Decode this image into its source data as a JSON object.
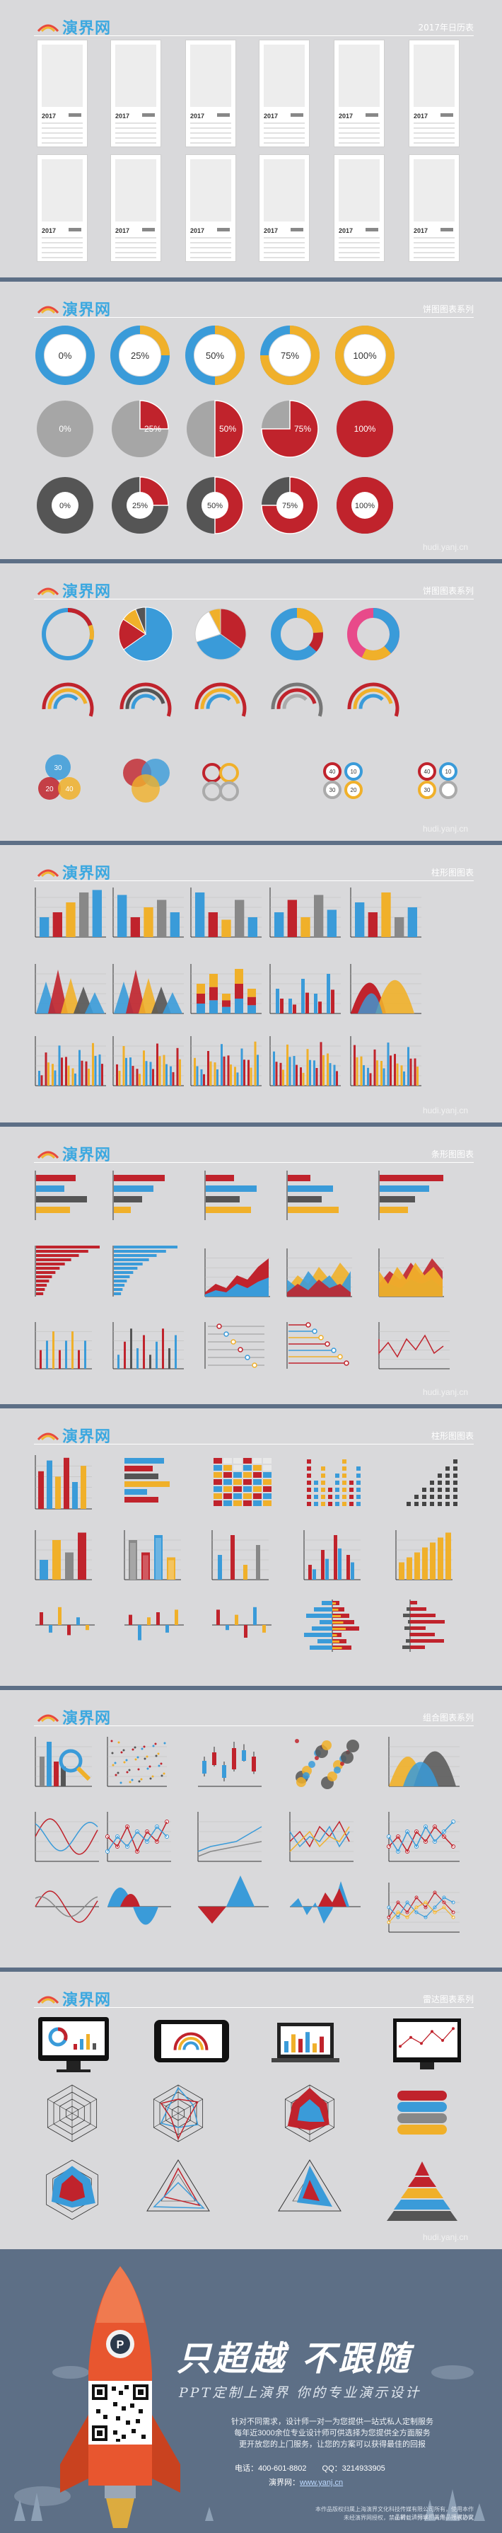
{
  "brand": {
    "logo_text": "演界网",
    "watermark": "hudi.yanj.cn"
  },
  "slides": {
    "s1": {
      "title": "2017年日历表",
      "year_label": "2017"
    },
    "s2": {
      "title": "饼图图表系列",
      "row1": [
        "0%",
        "25%",
        "50%",
        "75%",
        "100%"
      ],
      "row2": [
        "0%",
        "25%",
        "50%",
        "75%",
        "100%"
      ],
      "row3": [
        "0%",
        "25%",
        "50%",
        "75%",
        "100%"
      ]
    },
    "s3": {
      "title": "饼图图表系列",
      "bubble_labels": [
        "30",
        "20",
        "40",
        "40",
        "10",
        "30",
        "20",
        "40",
        "10",
        "30"
      ]
    },
    "s4": {
      "title": "柱形图图表"
    },
    "s5": {
      "title": "条形图图表"
    },
    "s6": {
      "title": "柱形图图表"
    },
    "s7": {
      "title": "组合图表系列"
    },
    "s8": {
      "title": "雷达图表系列"
    }
  },
  "footer": {
    "slogan": "只超越 不跟随",
    "subslogan": "PPT定制上演界 你的专业演示设计",
    "desc1": "针对不同需求，设计师一对一为您提供一站式私人定制服务",
    "desc2": "每年近3000余位专业设计师可供选择为您提供全方面服务",
    "desc3": "更开放您的上门服务，让您的方案可以获得最佳的回报",
    "tel_label": "电话：400-601-8802",
    "qq_label": "QQ：3214933905",
    "site_label": "演界网：",
    "site_url": "www.yanj.cn",
    "copyright1": "本作品版权归属上海演界文化科技传媒有限公司所有，使用本作品前，请阅读相关作品授权协议",
    "copyright2": "未经演界网授权，禁止转载、分享、商用，违者必究"
  },
  "colors": {
    "blue": "#3a9bd9",
    "yellow": "#f0b02a",
    "red": "#c0232c",
    "gray": "#9a9a9a",
    "dark": "#555555"
  }
}
